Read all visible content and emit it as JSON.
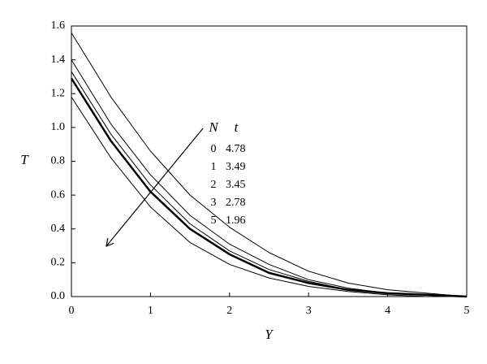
{
  "chart_data": {
    "type": "line",
    "x_label": "Y",
    "y_label": "T",
    "x": [
      0,
      0.5,
      1,
      1.5,
      2,
      2.5,
      3,
      3.5,
      4,
      4.5,
      5
    ],
    "series": [
      {
        "color": "#000000",
        "width": 1,
        "values": [
          1.56,
          1.18,
          0.86,
          0.6,
          0.41,
          0.26,
          0.15,
          0.08,
          0.04,
          0.02,
          0.0
        ]
      },
      {
        "color": "#000000",
        "width": 1,
        "values": [
          1.4,
          1.02,
          0.72,
          0.48,
          0.31,
          0.19,
          0.1,
          0.05,
          0.02,
          0.01,
          0.0
        ]
      },
      {
        "color": "#000000",
        "width": 1,
        "values": [
          1.33,
          0.96,
          0.66,
          0.43,
          0.27,
          0.16,
          0.09,
          0.04,
          0.02,
          0.01,
          0.0
        ]
      },
      {
        "color": "#000000",
        "width": 2.5,
        "values": [
          1.29,
          0.92,
          0.62,
          0.4,
          0.25,
          0.14,
          0.08,
          0.04,
          0.02,
          0.01,
          0.0
        ]
      },
      {
        "color": "#000000",
        "width": 1,
        "values": [
          1.18,
          0.82,
          0.53,
          0.32,
          0.19,
          0.11,
          0.06,
          0.03,
          0.01,
          0.0,
          0.0
        ]
      }
    ],
    "legend": {
      "headers": [
        "N",
        "t"
      ],
      "rows": [
        [
          "0",
          "4.78"
        ],
        [
          "1",
          "3.49"
        ],
        [
          "2",
          "3.45"
        ],
        [
          "3",
          "2.78"
        ],
        [
          "5",
          "1.96"
        ]
      ]
    },
    "xlim": [
      0,
      5
    ],
    "xticks": [
      0,
      1,
      2,
      3,
      4,
      5
    ],
    "ylim": [
      0,
      1.6
    ],
    "yticks": [
      {
        "value": 0,
        "label": "0.0"
      },
      {
        "value": 0.2,
        "label": "0.2"
      },
      {
        "value": 0.4,
        "label": "0.4"
      },
      {
        "value": 0.6,
        "label": "0.6"
      },
      {
        "value": 0.8,
        "label": "0.8"
      },
      {
        "value": 1.0,
        "label": "1.0"
      },
      {
        "value": 1.2,
        "label": "1.2"
      },
      {
        "value": 1.4,
        "label": "1.4"
      },
      {
        "value": 1.6,
        "label": "1.6"
      }
    ]
  }
}
